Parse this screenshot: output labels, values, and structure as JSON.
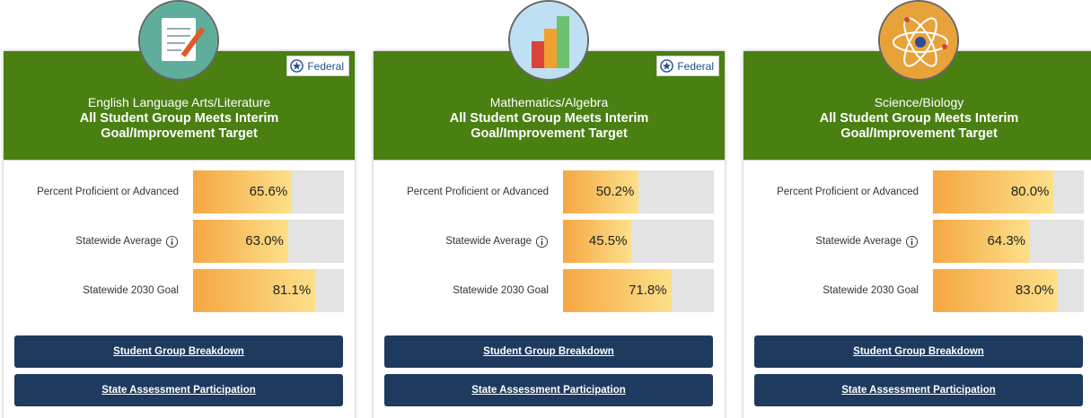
{
  "cards": [
    {
      "federal": "Federal",
      "subject": "English Language Arts/Literature",
      "heading": "All Student Group Meets Interim Goal/Improvement Target",
      "xlim": [
        0,
        100
      ],
      "rows": [
        {
          "label": "Percent Proficient or Advanced",
          "value": 65.6,
          "value_label": "65.6%"
        },
        {
          "label": "Statewide Average",
          "value": 63.0,
          "value_label": "63.0%"
        },
        {
          "label": "Statewide 2030 Goal",
          "value": 81.1,
          "value_label": "81.1%"
        }
      ],
      "buttons": [
        "Student Group Breakdown",
        "State Assessment Participation"
      ]
    },
    {
      "federal": "Federal",
      "subject": "Mathematics/Algebra",
      "heading": "All Student Group Meets Interim Goal/Improvement Target",
      "xlim": [
        0,
        100
      ],
      "rows": [
        {
          "label": "Percent Proficient or Advanced",
          "value": 50.2,
          "value_label": "50.2%"
        },
        {
          "label": "Statewide Average",
          "value": 45.5,
          "value_label": "45.5%"
        },
        {
          "label": "Statewide 2030 Goal",
          "value": 71.8,
          "value_label": "71.8%"
        }
      ],
      "buttons": [
        "Student Group Breakdown",
        "State Assessment Participation"
      ]
    },
    {
      "subject": "Science/Biology",
      "heading": "All Student Group Meets Interim Goal/Improvement Target",
      "xlim": [
        0,
        100
      ],
      "rows": [
        {
          "label": "Percent Proficient or Advanced",
          "value": 80.0,
          "value_label": "80.0%"
        },
        {
          "label": "Statewide Average",
          "value": 64.3,
          "value_label": "64.3%"
        },
        {
          "label": "Statewide 2030 Goal",
          "value": 83.0,
          "value_label": "83.0%"
        }
      ],
      "buttons": [
        "Student Group Breakdown",
        "State Assessment Participation"
      ]
    }
  ]
}
